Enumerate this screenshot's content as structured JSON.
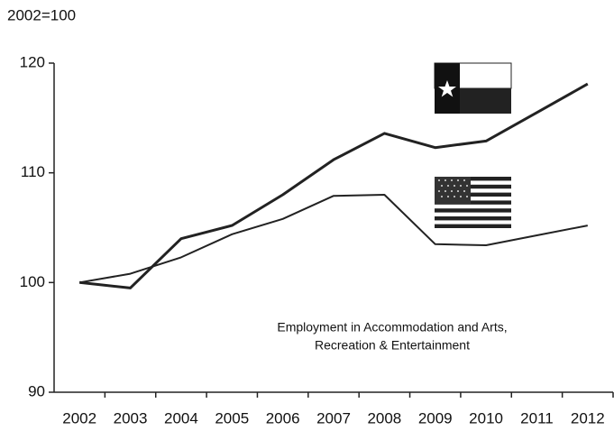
{
  "chart_data": {
    "type": "line",
    "title": "2002=100",
    "annotation": [
      "Employment in Accommodation and Arts,",
      "Recreation & Entertainment"
    ],
    "categories": [
      "2002",
      "2003",
      "2004",
      "2005",
      "2006",
      "2007",
      "2008",
      "2009",
      "2010",
      "2011",
      "2012"
    ],
    "series": [
      {
        "color": "#222222",
        "values": [
          100,
          99.5,
          104,
          105.2,
          108,
          111.2,
          113.6,
          112.3,
          112.9,
          115.5,
          118.1
        ]
      },
      {
        "color": "#222222",
        "values": [
          100,
          100.8,
          102.3,
          104.4,
          105.8,
          107.9,
          108,
          103.5,
          103.4,
          104.3,
          105.2
        ]
      }
    ],
    "ylim": [
      90,
      120
    ],
    "yticks": [
      90,
      100,
      110,
      120
    ],
    "grid": false
  }
}
